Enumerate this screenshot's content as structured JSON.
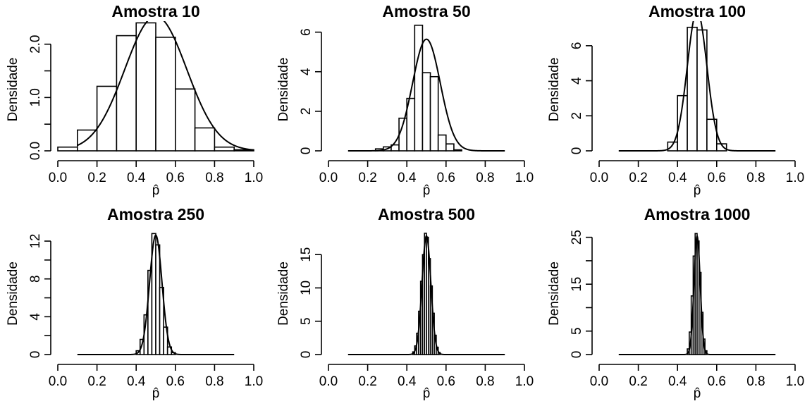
{
  "chart_data": [
    {
      "type": "histogram",
      "title": "Amostra 10",
      "xlabel": "p̂",
      "ylabel": "Densidade",
      "xlim": [
        0,
        1
      ],
      "ylim": [
        0,
        2.3
      ],
      "xticks": [
        "0.0",
        "0.2",
        "0.4",
        "0.6",
        "0.8",
        "1.0"
      ],
      "yticks": [
        {
          "v": 0,
          "label": "0.0"
        },
        {
          "v": 0.5,
          "label": ""
        },
        {
          "v": 1.0,
          "label": "1.0"
        },
        {
          "v": 1.5,
          "label": ""
        },
        {
          "v": 2.0,
          "label": "2.0"
        }
      ],
      "bins": [
        0,
        0.1,
        0.2,
        0.3,
        0.4,
        0.5,
        0.6,
        0.7,
        0.8,
        0.9,
        1.0
      ],
      "densities": [
        0.07,
        0.39,
        1.21,
        2.16,
        2.4,
        2.13,
        1.16,
        0.43,
        0.07,
        0.02
      ],
      "curve": {
        "mean": 0.5,
        "sd": 0.158,
        "from": 0.1,
        "to": 1.0
      }
    },
    {
      "type": "histogram",
      "title": "Amostra 50",
      "xlabel": "p̂",
      "ylabel": "Densidade",
      "xlim": [
        0,
        1
      ],
      "ylim": [
        0,
        6.2
      ],
      "xticks": [
        "0.0",
        "0.2",
        "0.4",
        "0.6",
        "0.8",
        "1.0"
      ],
      "yticks": [
        {
          "v": 0,
          "label": "0"
        },
        {
          "v": 2,
          "label": "2"
        },
        {
          "v": 4,
          "label": "4"
        },
        {
          "v": 6,
          "label": "6"
        }
      ],
      "bins": [
        0.24,
        0.28,
        0.32,
        0.36,
        0.4,
        0.44,
        0.48,
        0.52,
        0.56,
        0.6,
        0.64,
        0.68
      ],
      "densities": [
        0.1,
        0.2,
        0.3,
        1.65,
        2.65,
        6.35,
        3.95,
        3.75,
        0.8,
        0.35,
        0.05
      ],
      "curve": {
        "mean": 0.5,
        "sd": 0.0707,
        "from": 0.1,
        "to": 0.9
      }
    },
    {
      "type": "histogram",
      "title": "Amostra 100",
      "xlabel": "p̂",
      "ylabel": "Densidade",
      "xlim": [
        0,
        1
      ],
      "ylim": [
        0,
        7.0
      ],
      "xticks": [
        "0.0",
        "0.2",
        "0.4",
        "0.6",
        "0.8",
        "1.0"
      ],
      "yticks": [
        {
          "v": 0,
          "label": "0"
        },
        {
          "v": 2,
          "label": "2"
        },
        {
          "v": 4,
          "label": "4"
        },
        {
          "v": 6,
          "label": "6"
        }
      ],
      "bins": [
        0.35,
        0.4,
        0.45,
        0.5,
        0.55,
        0.6,
        0.65
      ],
      "densities": [
        0.5,
        3.15,
        7.05,
        6.9,
        1.8,
        0.4
      ],
      "curve": {
        "mean": 0.5,
        "sd": 0.05,
        "from": 0.1,
        "to": 0.9
      }
    },
    {
      "type": "histogram",
      "title": "Amostra 250",
      "xlabel": "p̂",
      "ylabel": "Densidade",
      "xlim": [
        0,
        1
      ],
      "ylim": [
        0,
        12.9
      ],
      "xticks": [
        "0.0",
        "0.2",
        "0.4",
        "0.6",
        "0.8",
        "1.0"
      ],
      "yticks": [
        {
          "v": 0,
          "label": "0"
        },
        {
          "v": 2,
          "label": ""
        },
        {
          "v": 4,
          "label": "4"
        },
        {
          "v": 6,
          "label": ""
        },
        {
          "v": 8,
          "label": "8"
        },
        {
          "v": 10,
          "label": ""
        },
        {
          "v": 12,
          "label": "12"
        }
      ],
      "bins": [
        0.4,
        0.42,
        0.44,
        0.46,
        0.48,
        0.5,
        0.52,
        0.54,
        0.56,
        0.58,
        0.6
      ],
      "densities": [
        0.4,
        1.6,
        4.2,
        8.9,
        12.8,
        11.6,
        7.1,
        2.9,
        0.8,
        0.2
      ],
      "curve": {
        "mean": 0.5,
        "sd": 0.0316,
        "from": 0.1,
        "to": 0.9
      }
    },
    {
      "type": "histogram",
      "title": "Amostra 500",
      "xlabel": "p̂",
      "ylabel": "Densidade",
      "xlim": [
        0,
        1
      ],
      "ylim": [
        0,
        18.3
      ],
      "xticks": [
        "0.0",
        "0.2",
        "0.4",
        "0.6",
        "0.8",
        "1.0"
      ],
      "yticks": [
        {
          "v": 0,
          "label": "0"
        },
        {
          "v": 5,
          "label": "5"
        },
        {
          "v": 10,
          "label": "10"
        },
        {
          "v": 15,
          "label": "15"
        }
      ],
      "bins": [
        0.43,
        0.44,
        0.45,
        0.46,
        0.47,
        0.48,
        0.49,
        0.5,
        0.51,
        0.52,
        0.53,
        0.54,
        0.55,
        0.56,
        0.57
      ],
      "densities": [
        0.4,
        1.3,
        3.2,
        6.5,
        11.0,
        15.0,
        18.2,
        17.6,
        14.4,
        10.3,
        6.2,
        2.9,
        1.1,
        0.3
      ],
      "curve": {
        "mean": 0.5,
        "sd": 0.0224,
        "from": 0.1,
        "to": 0.9
      }
    },
    {
      "type": "histogram",
      "title": "Amostra 1000",
      "xlabel": "p̂",
      "ylabel": "Densidade",
      "xlim": [
        0,
        1
      ],
      "ylim": [
        0,
        26
      ],
      "xticks": [
        "0.0",
        "0.2",
        "0.4",
        "0.6",
        "0.8",
        "1.0"
      ],
      "yticks": [
        {
          "v": 0,
          "label": "0"
        },
        {
          "v": 5,
          "label": "5"
        },
        {
          "v": 10,
          "label": ""
        },
        {
          "v": 15,
          "label": "15"
        },
        {
          "v": 20,
          "label": ""
        },
        {
          "v": 25,
          "label": "25"
        }
      ],
      "bins": [
        0.45,
        0.46,
        0.47,
        0.48,
        0.49,
        0.5,
        0.51,
        0.52,
        0.53,
        0.54,
        0.55
      ],
      "densities": [
        1.2,
        4.8,
        12.5,
        21.0,
        25.8,
        24.2,
        17.5,
        9.0,
        3.3,
        0.8
      ],
      "curve": {
        "mean": 0.5,
        "sd": 0.0158,
        "from": 0.1,
        "to": 0.9
      }
    }
  ]
}
